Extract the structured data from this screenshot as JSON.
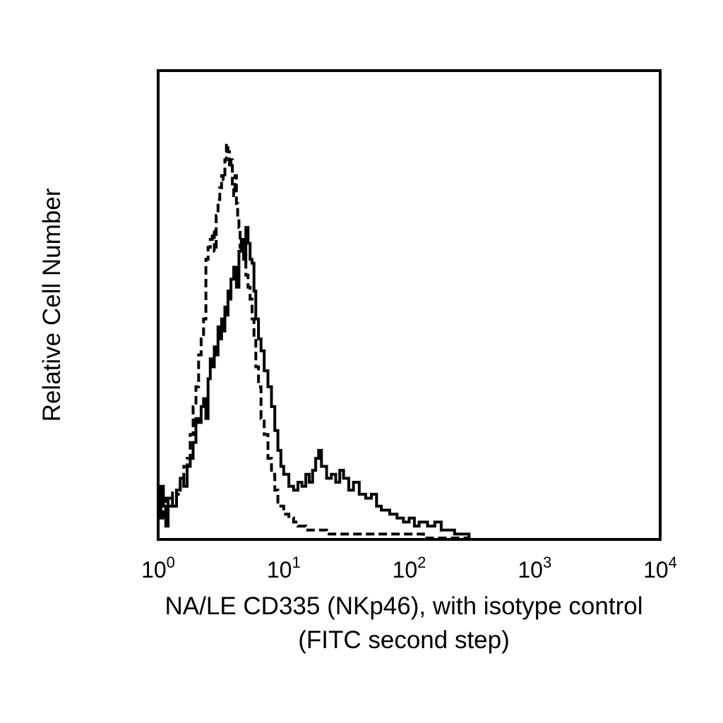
{
  "chart_data": {
    "type": "line",
    "title": "",
    "xlabel_lines": [
      "NA/LE CD335 (NKp46), with isotype control",
      "(FITC second step)"
    ],
    "ylabel": "Relative Cell Number",
    "x_scale": "log",
    "xlim": [
      1,
      10000
    ],
    "ylim": [
      0,
      1
    ],
    "y_ticks_shown": false,
    "grid": false,
    "legend": "none",
    "x_ticks": [
      {
        "value": 1,
        "base": "10",
        "exp": "0"
      },
      {
        "value": 10,
        "base": "10",
        "exp": "1"
      },
      {
        "value": 100,
        "base": "10",
        "exp": "2"
      },
      {
        "value": 1000,
        "base": "10",
        "exp": "3"
      },
      {
        "value": 10000,
        "base": "10",
        "exp": "4"
      }
    ],
    "series": [
      {
        "style": "dashed",
        "color": "#000000",
        "x": [
          1.0,
          1.05,
          1.1,
          1.15,
          1.2,
          1.3,
          1.4,
          1.5,
          1.6,
          1.7,
          1.8,
          1.9,
          2.0,
          2.1,
          2.2,
          2.3,
          2.4,
          2.5,
          2.6,
          2.7,
          2.8,
          2.9,
          3.0,
          3.1,
          3.2,
          3.3,
          3.4,
          3.5,
          3.6,
          3.7,
          3.8,
          3.9,
          4.0,
          4.1,
          4.2,
          4.3,
          4.4,
          4.5,
          4.6,
          4.8,
          5.0,
          5.2,
          5.4,
          5.6,
          5.8,
          6.0,
          6.3,
          6.6,
          7.0,
          7.5,
          8.0,
          8.5,
          9.0,
          9.5,
          10.0,
          11.0,
          12.0,
          13.0,
          14.0,
          15.0,
          16.0,
          18.0,
          20.0,
          22.0,
          25.0,
          30.0,
          35.0,
          40.0,
          50.0,
          60.0,
          80.0,
          100.0,
          130.0,
          160.0,
          200.0,
          260.0,
          300.0
        ],
        "y": [
          0.06,
          0.09,
          0.05,
          0.1,
          0.08,
          0.12,
          0.11,
          0.14,
          0.18,
          0.2,
          0.26,
          0.33,
          0.38,
          0.46,
          0.5,
          0.55,
          0.7,
          0.73,
          0.75,
          0.77,
          0.72,
          0.81,
          0.85,
          0.88,
          0.91,
          0.9,
          0.95,
          0.99,
          0.97,
          0.93,
          0.95,
          0.88,
          0.86,
          0.91,
          0.84,
          0.8,
          0.78,
          0.73,
          0.75,
          0.71,
          0.66,
          0.63,
          0.6,
          0.55,
          0.5,
          0.43,
          0.38,
          0.3,
          0.26,
          0.2,
          0.16,
          0.12,
          0.09,
          0.08,
          0.06,
          0.05,
          0.04,
          0.03,
          0.03,
          0.02,
          0.02,
          0.02,
          0.02,
          0.01,
          0.01,
          0.01,
          0.01,
          0.01,
          0.01,
          0.01,
          0.01,
          0.01,
          0.0,
          0.0,
          0.0,
          0.0,
          0.0
        ]
      },
      {
        "style": "solid",
        "color": "#000000",
        "x": [
          1.0,
          1.05,
          1.1,
          1.15,
          1.2,
          1.3,
          1.4,
          1.5,
          1.6,
          1.7,
          1.8,
          1.9,
          2.0,
          2.1,
          2.2,
          2.3,
          2.4,
          2.5,
          2.6,
          2.7,
          2.8,
          2.9,
          3.0,
          3.1,
          3.2,
          3.3,
          3.4,
          3.5,
          3.6,
          3.7,
          3.8,
          4.0,
          4.2,
          4.4,
          4.6,
          4.8,
          5.0,
          5.2,
          5.4,
          5.6,
          5.8,
          6.0,
          6.3,
          6.6,
          7.0,
          7.5,
          8.0,
          8.5,
          9.0,
          9.5,
          10.0,
          11.0,
          12.0,
          13.0,
          14.0,
          15.0,
          16.0,
          17.0,
          18.0,
          19.0,
          20.0,
          22.0,
          24.0,
          26.0,
          28.0,
          30.0,
          33.0,
          36.0,
          40.0,
          45.0,
          50.0,
          55.0,
          60.0,
          70.0,
          80.0,
          90.0,
          100.0,
          110.0,
          120.0,
          140.0,
          160.0,
          180.0,
          200.0,
          230.0,
          260.0,
          300.0
        ],
        "y": [
          0.05,
          0.13,
          0.08,
          0.03,
          0.1,
          0.08,
          0.12,
          0.15,
          0.13,
          0.18,
          0.2,
          0.24,
          0.3,
          0.29,
          0.33,
          0.35,
          0.3,
          0.4,
          0.45,
          0.43,
          0.48,
          0.46,
          0.53,
          0.5,
          0.55,
          0.52,
          0.58,
          0.56,
          0.62,
          0.6,
          0.65,
          0.68,
          0.63,
          0.72,
          0.75,
          0.7,
          0.78,
          0.74,
          0.7,
          0.69,
          0.62,
          0.55,
          0.5,
          0.47,
          0.42,
          0.38,
          0.33,
          0.27,
          0.22,
          0.18,
          0.16,
          0.13,
          0.12,
          0.14,
          0.13,
          0.16,
          0.14,
          0.17,
          0.2,
          0.22,
          0.18,
          0.15,
          0.16,
          0.14,
          0.17,
          0.15,
          0.12,
          0.14,
          0.11,
          0.1,
          0.11,
          0.08,
          0.07,
          0.06,
          0.05,
          0.04,
          0.05,
          0.03,
          0.04,
          0.03,
          0.04,
          0.02,
          0.02,
          0.01,
          0.01,
          0.0
        ]
      }
    ]
  }
}
